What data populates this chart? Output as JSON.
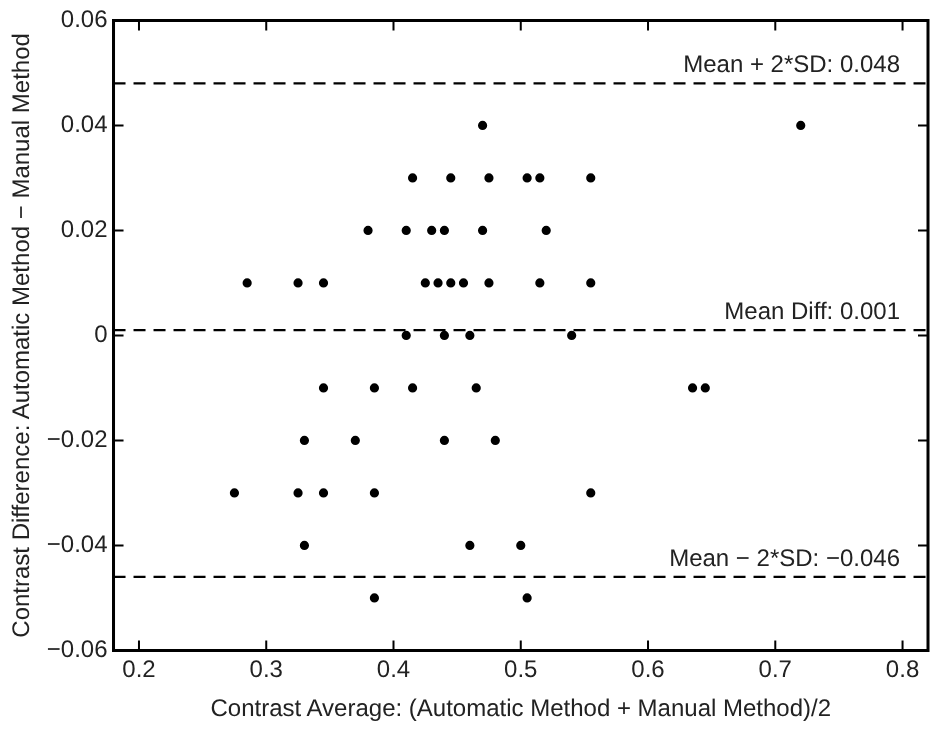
{
  "chart_data": {
    "type": "scatter",
    "xlabel": "Contrast Average: (Automatic Method + Manual Method)/2",
    "ylabel": "Contrast Difference: Automatic Method − Manual Method",
    "xlim": [
      0.18,
      0.82
    ],
    "xticks": [
      0.2,
      0.3,
      0.4,
      0.5,
      0.6,
      0.7,
      0.8
    ],
    "ylim": [
      -0.06,
      0.06
    ],
    "yticks": [
      {
        "value": -0.06,
        "label": "−0.06"
      },
      {
        "value": -0.04,
        "label": "−0.04"
      },
      {
        "value": -0.02,
        "label": "−0.02"
      },
      0,
      0.02,
      0.04,
      0.06
    ],
    "grid": false,
    "legend": false,
    "marker": "circle",
    "series": [
      {
        "color": "#000000",
        "x": [
          0.47,
          0.72,
          0.415,
          0.445,
          0.475,
          0.505,
          0.515,
          0.555,
          0.38,
          0.41,
          0.43,
          0.44,
          0.47,
          0.52,
          0.285,
          0.325,
          0.345,
          0.425,
          0.435,
          0.445,
          0.455,
          0.475,
          0.515,
          0.555,
          0.41,
          0.44,
          0.46,
          0.54,
          0.345,
          0.385,
          0.415,
          0.465,
          0.635,
          0.645,
          0.33,
          0.37,
          0.44,
          0.48,
          0.275,
          0.325,
          0.345,
          0.385,
          0.555,
          0.33,
          0.46,
          0.5,
          0.385,
          0.505
        ],
        "values": [
          0.04,
          0.04,
          0.03,
          0.03,
          0.03,
          0.03,
          0.03,
          0.03,
          0.02,
          0.02,
          0.02,
          0.02,
          0.02,
          0.02,
          0.01,
          0.01,
          0.01,
          0.01,
          0.01,
          0.01,
          0.01,
          0.01,
          0.01,
          0.01,
          0,
          0,
          0,
          0,
          -0.01,
          -0.01,
          -0.01,
          -0.01,
          -0.01,
          -0.01,
          -0.02,
          -0.02,
          -0.02,
          -0.02,
          -0.03,
          -0.03,
          -0.03,
          -0.03,
          -0.03,
          -0.04,
          -0.04,
          -0.04,
          -0.05,
          -0.05
        ]
      }
    ],
    "ref_lines": [
      {
        "axis": "y",
        "value": 0.048,
        "label": "Mean + 2*SD: 0.048",
        "color": "#000000",
        "line_style": "dashed"
      },
      {
        "axis": "y",
        "value": 0.001,
        "label": "Mean Diff: 0.001",
        "color": "#000000",
        "line_style": "dashed"
      },
      {
        "axis": "y",
        "value": -0.046,
        "label": "Mean − 2*SD: −0.046",
        "color": "#000000",
        "line_style": "dashed"
      }
    ]
  }
}
